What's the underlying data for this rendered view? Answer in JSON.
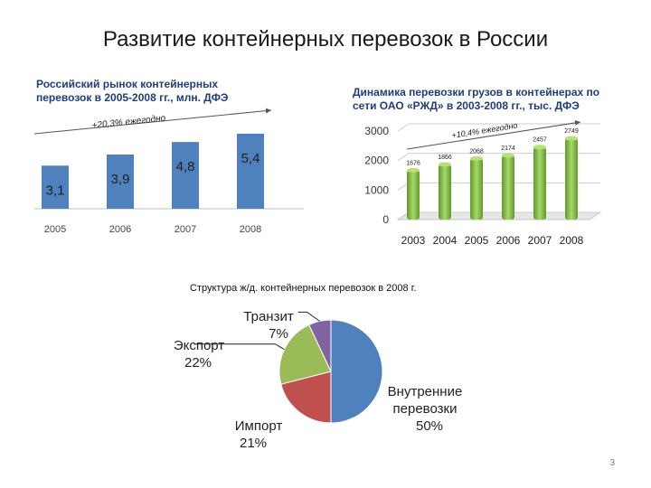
{
  "slide": {
    "title": "Развитие контейнерных перевозок в России",
    "page_number": "3"
  },
  "chart_data": [
    {
      "type": "bar",
      "title": "Российский рынок контейнерных перевозок в 2005-2008 гг., млн. ДФЭ",
      "categories": [
        "2005",
        "2006",
        "2007",
        "2008"
      ],
      "values": [
        3.1,
        3.9,
        4.8,
        5.4
      ],
      "value_labels": [
        "3,1",
        "3,9",
        "4,8",
        "5,4"
      ],
      "annotation": "+20,3% ежегодно",
      "color": "#4f81bd",
      "grid": false
    },
    {
      "type": "bar",
      "title": "Динамика перевозки грузов в контейнерах по сети ОАО «РЖД» в 2003-2008 гг., тыс. ДФЭ",
      "categories": [
        "2003",
        "2004",
        "2005",
        "2006",
        "2007",
        "2008"
      ],
      "values": [
        1676,
        1866,
        2068,
        2174,
        2457,
        2749
      ],
      "value_labels": [
        "1676",
        "1866",
        "2068",
        "2174",
        "2457",
        "2749"
      ],
      "ylim": [
        0,
        3000
      ],
      "yticks": [
        "0",
        "1000",
        "2000",
        "3000"
      ],
      "annotation": "+10,4% ежегодно",
      "color": "#8dc63f",
      "grid": true
    },
    {
      "type": "pie",
      "title": "Структура ж/д. контейнерных перевозок в 2008 г.",
      "slices": [
        {
          "label": "Внутренние перевозки",
          "value": 50,
          "value_label": "50%",
          "color": "#4f81bd"
        },
        {
          "label": "Импорт",
          "value": 21,
          "value_label": "21%",
          "color": "#c0504d"
        },
        {
          "label": "Экспорт",
          "value": 22,
          "value_label": "22%",
          "color": "#9bbb59"
        },
        {
          "label": "Транзит",
          "value": 7,
          "value_label": "7%",
          "color": "#8064a2"
        }
      ]
    }
  ]
}
